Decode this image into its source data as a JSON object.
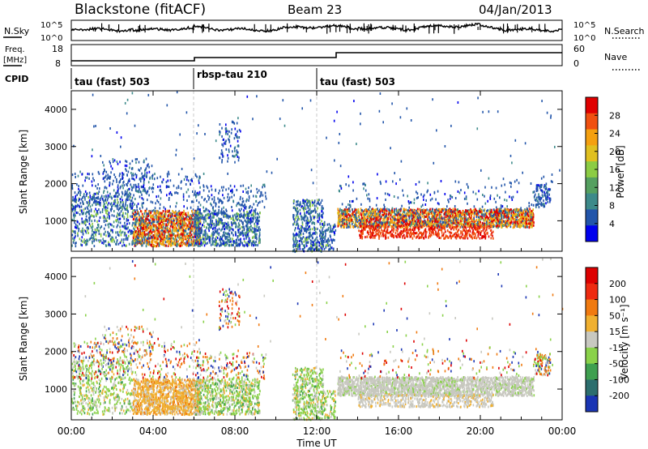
{
  "header": {
    "station": "Blackstone (fitACF)",
    "beam": "Beam 23",
    "date": "04/Jan/2013"
  },
  "summary_panels": {
    "nsky_label": "N.Sky",
    "nsearch_label": "N.Search",
    "log_tick_high": "10^5",
    "log_tick_low": "10^0",
    "freq_label_line1": "Freq.",
    "freq_label_line2": "[MHz]",
    "freq_ticks": [
      "18",
      "8"
    ],
    "nave_label": "Nave",
    "nave_ticks": [
      "60",
      "0"
    ],
    "cpid_label": "CPID",
    "cpid_segments": [
      {
        "name": "tau (fast) 503",
        "start_hour": 0
      },
      {
        "name": "rbsp-tau 210",
        "start_hour": 6
      },
      {
        "name": "tau (fast) 503",
        "start_hour": 12
      }
    ]
  },
  "chart_data": [
    {
      "type": "heatmap",
      "panel": "power",
      "x_field": "Time UT (hours)",
      "xlim": [
        0,
        24
      ],
      "ylabel": "Slant Range [km]",
      "ylim": [
        180,
        4500
      ],
      "yticks": [
        1000,
        2000,
        3000,
        4000
      ],
      "colorbar_label": "Power [dB]",
      "colorbar_ticks": [
        "28",
        "24",
        "20",
        "16",
        "12",
        "8",
        "4"
      ],
      "color_scale": [
        "#0000ee",
        "#2255aa",
        "#3d8a8a",
        "#55a060",
        "#8ccc44",
        "#e0c020",
        "#f4a010",
        "#f05010",
        "#e00000"
      ]
    },
    {
      "type": "heatmap",
      "panel": "velocity",
      "x_field": "Time UT (hours)",
      "xlim": [
        0,
        24
      ],
      "ylabel": "Slant Range [km]",
      "ylim": [
        180,
        4500
      ],
      "yticks": [
        1000,
        2000,
        3000,
        4000
      ],
      "colorbar_label": "Velocity [m s⁻¹]",
      "colorbar_ticks": [
        "200",
        "100",
        "50",
        "15",
        "-15",
        "-50",
        "-100",
        "-200"
      ],
      "color_scale": [
        "#1a35b4",
        "#2c6e6e",
        "#3fa050",
        "#8ad24a",
        "#c8c8c0",
        "#f0b030",
        "#f07a10",
        "#ee2a10",
        "#dd0000"
      ]
    }
  ],
  "x_axis": {
    "ticks": [
      "00:00",
      "04:00",
      "08:00",
      "12:00",
      "16:00",
      "20:00",
      "00:00"
    ],
    "title": "Time UT"
  },
  "scan_lines_hours": [
    6,
    12
  ]
}
